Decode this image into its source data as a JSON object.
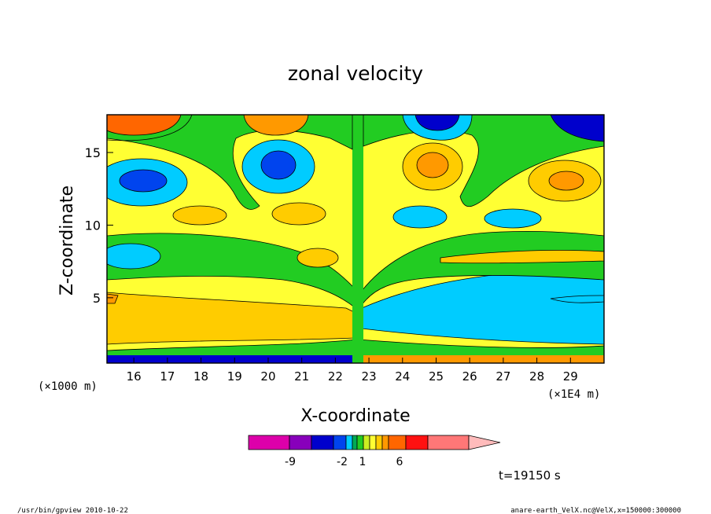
{
  "chart_data": {
    "type": "heatmap",
    "title": "zonal velocity",
    "xlabel": "X-coordinate",
    "ylabel": "Z-coordinate",
    "x_unit_left": "(×1000 m)",
    "x_unit_right": "(×1E4 m)",
    "xlim": [
      15.2,
      30.0
    ],
    "ylim": [
      0.5,
      17.6
    ],
    "x_ticks": [
      "16",
      "17",
      "18",
      "19",
      "20",
      "21",
      "22",
      "23",
      "24",
      "25",
      "26",
      "27",
      "28",
      "29"
    ],
    "y_ticks": [
      "5",
      "10",
      "15"
    ],
    "colorbar_labels": [
      "-9",
      "-2",
      "1",
      "6"
    ],
    "colorbar_colors": [
      "#dd00aa",
      "#8800bb",
      "#0000cc",
      "#0044ee",
      "#00ccff",
      "#00aa55",
      "#22cc22",
      "#ccee22",
      "#ffff33",
      "#ffcc00",
      "#ff9900",
      "#ff6600",
      "#ff1111",
      "#ff7777",
      "#ffbbbb"
    ],
    "field_colors": {
      "strong_neg": "#0000cc",
      "mid_neg": "#0044ee",
      "neg": "#00ccff",
      "near_zero": "#22cc22",
      "small_pos": "#ffff33",
      "pos": "#ffcc00",
      "mid_pos": "#ff9900",
      "strong_pos": "#ff6600",
      "max_pos": "#ff1111"
    },
    "time_label": "t=19150 s"
  },
  "footer": {
    "left": "/usr/bin/gpview  2010-10-22",
    "right": "anare-earth_VelX.nc@VelX,x=150000:300000"
  }
}
